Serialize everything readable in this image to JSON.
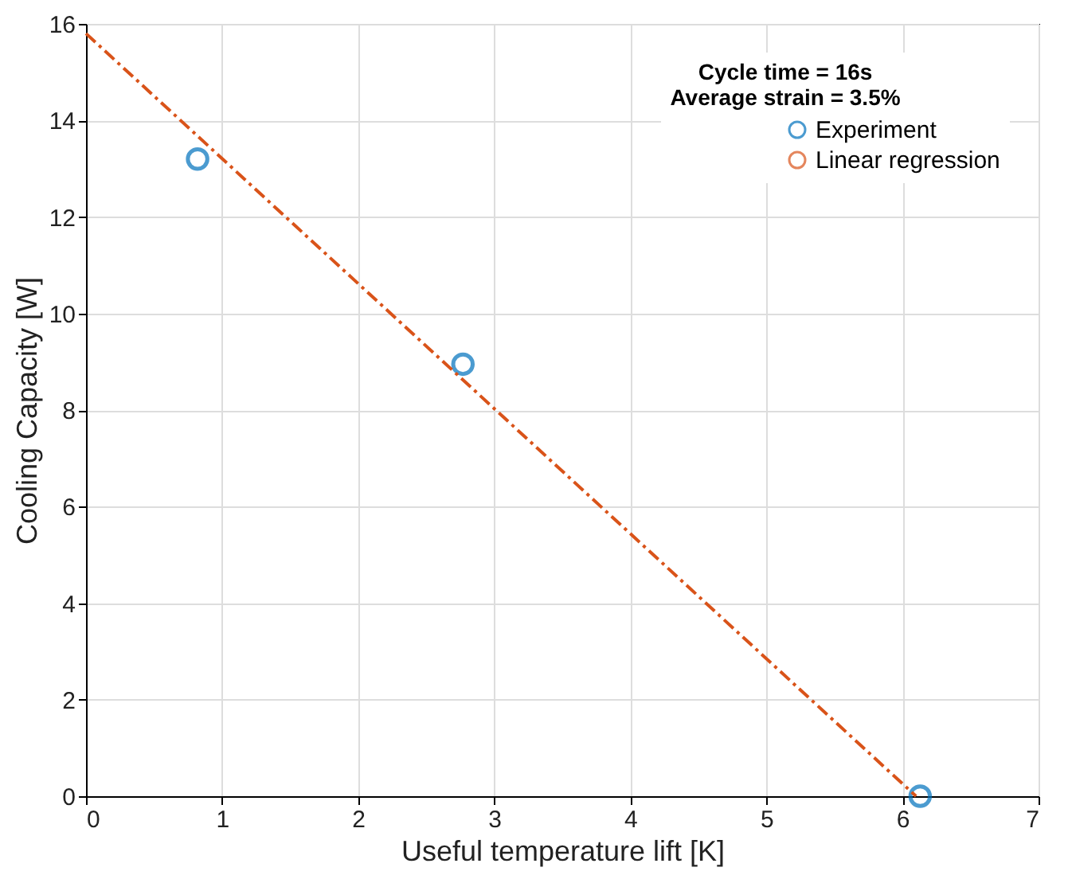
{
  "chart_data": {
    "type": "scatter",
    "xlabel": "Useful temperature lift [K]",
    "ylabel": "Cooling Capacity [W]",
    "legend_title": "Cycle time = 16s\nAverage strain = 3.5%",
    "series": [
      {
        "name": "Experiment",
        "color": "#0072bd",
        "marker": "circle",
        "x": [
          0.82,
          2.77,
          6.13
        ],
        "values": [
          13.2,
          8.95,
          0
        ]
      },
      {
        "name": "Linear regression",
        "type": "line",
        "color": "#d95319",
        "line_style": "dashdot",
        "marker": "none",
        "x": [
          0,
          6.1
        ],
        "values": [
          15.8,
          0
        ]
      }
    ],
    "xlim": [
      0,
      7
    ],
    "xticks": [
      0,
      1,
      2,
      3,
      4,
      5,
      6,
      7
    ],
    "ylim": [
      0,
      16
    ],
    "yticks": [
      0,
      2,
      4,
      6,
      8,
      10,
      12,
      14,
      16
    ],
    "grid": true,
    "legend": "top right"
  }
}
